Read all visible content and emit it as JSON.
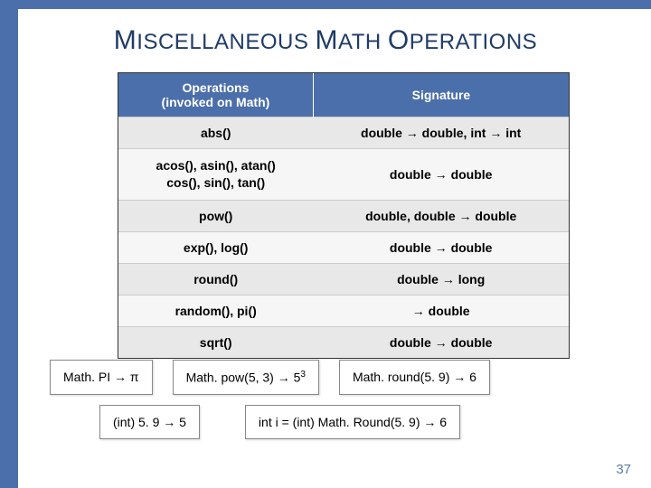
{
  "colors": {
    "bar": "#4b6faa",
    "title": "#1f3b66",
    "table_header_bg": "#4b6faa",
    "row_alt_bg": "#e8e8e8",
    "row_bg": "#f6f6f6",
    "pagenum": "#5b7bb0"
  },
  "title": {
    "t1_cap": "M",
    "t1_rest": "ISCELLANEOUS ",
    "t2_cap": "M",
    "t2_rest": "ATH ",
    "t3_cap": "O",
    "t3_rest": "PERATIONS"
  },
  "table": {
    "header_col1_line1": "Operations",
    "header_col1_line2": "(invoked on Math)",
    "header_col2": "Signature",
    "rows": [
      {
        "op": "abs()",
        "sig": "double → double, int → int",
        "multiline": false
      },
      {
        "op": "acos(), asin(), atan()\ncos(), sin(), tan()",
        "sig": "double → double",
        "multiline": true
      },
      {
        "op": "pow()",
        "sig": "double, double → double",
        "multiline": false
      },
      {
        "op": "exp(), log()",
        "sig": "double → double",
        "multiline": false
      },
      {
        "op": "round()",
        "sig": "double → long",
        "multiline": false
      },
      {
        "op": "random(), pi()",
        "sig": "→ double",
        "multiline": false
      },
      {
        "op": "sqrt()",
        "sig": "double → double",
        "multiline": false
      }
    ]
  },
  "examples_row1": [
    {
      "html": "Math. PI → π"
    },
    {
      "html": "Math. pow(5, 3) → 5<span class=\"sup\">3</span>"
    },
    {
      "html": "Math. round(5. 9) → 6"
    }
  ],
  "examples_row2": [
    {
      "html": "(int) 5. 9 → 5"
    },
    {
      "html": "int i = (int) Math. Round(5. 9) →  6"
    }
  ],
  "page_number": "37"
}
